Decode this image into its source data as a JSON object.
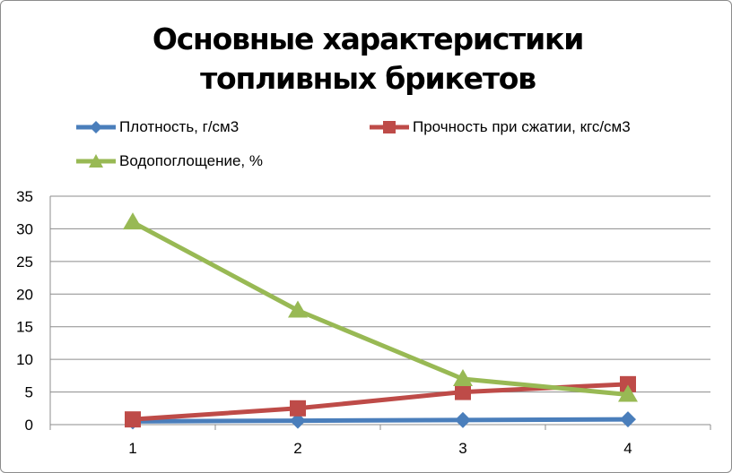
{
  "chart_data": {
    "type": "line",
    "title": "Основные характеристики топливных брикетов",
    "categories": [
      "1",
      "2",
      "3",
      "4"
    ],
    "ylim": [
      0,
      35
    ],
    "yticks": [
      "0",
      "5",
      "10",
      "15",
      "20",
      "25",
      "30",
      "35"
    ],
    "grid": true,
    "legend_position": "top",
    "series": [
      {
        "name": "Плотность, г/см3",
        "color": "#4a7ebb",
        "marker": "diamond",
        "values": [
          0.5,
          0.6,
          0.7,
          0.8
        ]
      },
      {
        "name": "Прочность при сжатии, кгс/см3",
        "color": "#be4b48",
        "marker": "square",
        "values": [
          0.8,
          2.5,
          5.0,
          6.2
        ]
      },
      {
        "name": "Водопоглощение, %",
        "color": "#98b954",
        "marker": "triangle",
        "values": [
          31.0,
          17.5,
          7.0,
          4.6
        ]
      }
    ]
  }
}
